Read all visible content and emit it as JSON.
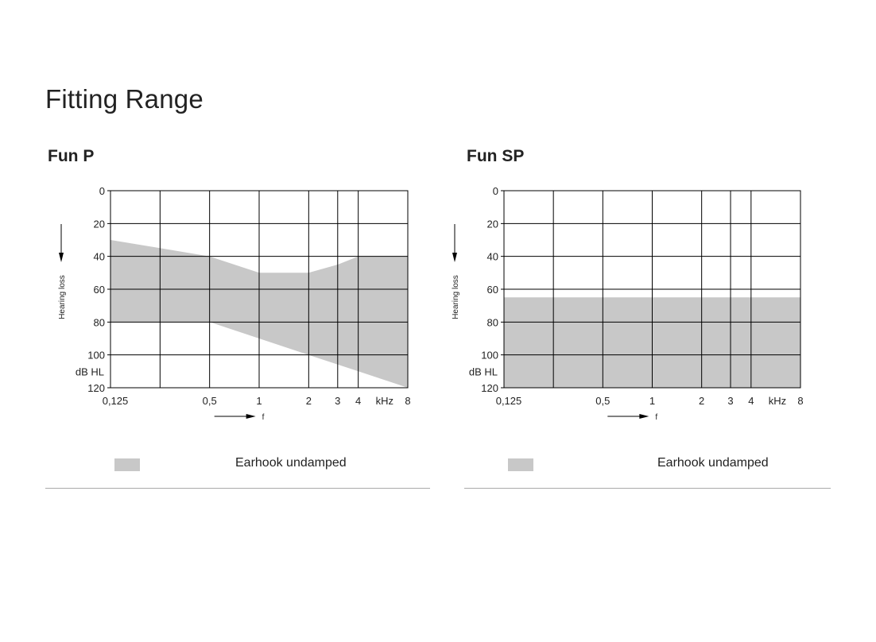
{
  "page": {
    "title": "Fitting Range"
  },
  "colors": {
    "fill": "#c8c8c8",
    "grid": "#000000",
    "text": "#222222",
    "rule": "#aaaaaa"
  },
  "chart_data": [
    {
      "type": "area",
      "title": "Fun P",
      "xlabel": "f",
      "ylabel": "Hearing loss",
      "y_unit": "dB HL",
      "x_scale": "log",
      "y_inverted": true,
      "ylim": [
        0,
        120
      ],
      "xlim": [
        0.125,
        8
      ],
      "y_ticks": [
        0,
        20,
        40,
        60,
        80,
        100,
        120
      ],
      "x_ticks": [
        "0,125",
        "0,5",
        "1",
        "2",
        "3",
        "4",
        "kHz",
        "8"
      ],
      "x_gridlines": [
        0.25,
        0.5,
        1,
        2,
        3,
        4
      ],
      "grid": true,
      "series": [
        {
          "name": "Earhook undamped",
          "upper": [
            [
              0.125,
              30
            ],
            [
              0.25,
              35
            ],
            [
              0.5,
              40
            ],
            [
              1,
              50
            ],
            [
              2,
              50
            ],
            [
              3,
              45
            ],
            [
              4,
              40
            ],
            [
              8,
              40
            ]
          ],
          "lower": [
            [
              0.125,
              80
            ],
            [
              0.5,
              80
            ],
            [
              1,
              90
            ],
            [
              2,
              100
            ],
            [
              4,
              110
            ],
            [
              8,
              120
            ]
          ]
        }
      ],
      "legend": "Earhook undamped"
    },
    {
      "type": "area",
      "title": "Fun SP",
      "xlabel": "f",
      "ylabel": "Hearing loss",
      "y_unit": "dB HL",
      "x_scale": "log",
      "y_inverted": true,
      "ylim": [
        0,
        120
      ],
      "xlim": [
        0.125,
        8
      ],
      "y_ticks": [
        0,
        20,
        40,
        60,
        80,
        100,
        120
      ],
      "x_ticks": [
        "0,125",
        "0,5",
        "1",
        "2",
        "3",
        "4",
        "kHz",
        "8"
      ],
      "x_gridlines": [
        0.25,
        0.5,
        1,
        2,
        3,
        4
      ],
      "grid": true,
      "series": [
        {
          "name": "Earhook undamped",
          "upper": [
            [
              0.125,
              65
            ],
            [
              8,
              65
            ]
          ],
          "lower": [
            [
              0.125,
              120
            ],
            [
              8,
              120
            ]
          ]
        }
      ],
      "legend": "Earhook undamped"
    }
  ]
}
